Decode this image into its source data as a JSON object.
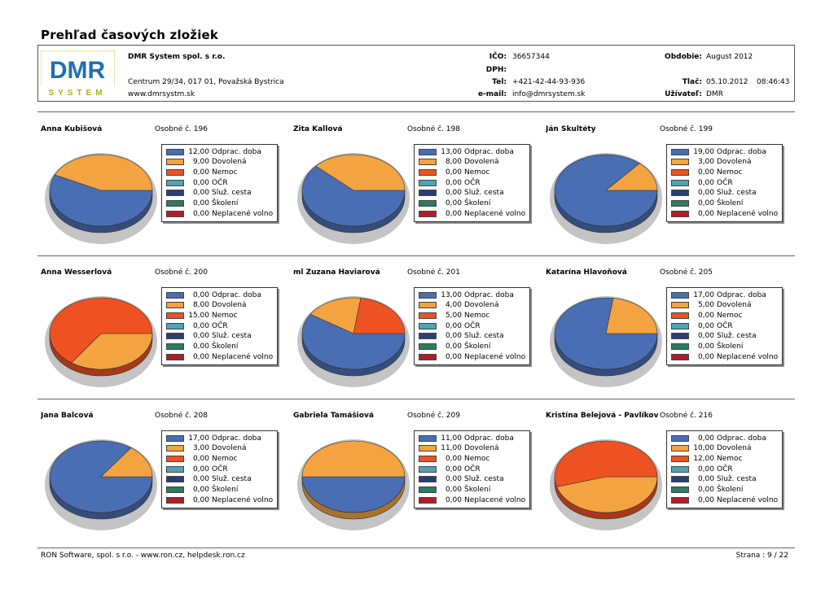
{
  "report": {
    "title": "Prehľad časových zložiek"
  },
  "company": {
    "name": "DMR System spol. s r.o.",
    "address": "Centrum 29/34, 017 01, Považská Bystrica",
    "web": "www.dmrsystm.sk",
    "logo_text_top": "DMR",
    "logo_text_bottom": "SYSTEM"
  },
  "ids": {
    "ico_label": "IČO:",
    "ico_value": "36657344",
    "dph_label": "DPH:",
    "tel_label": "Tel:",
    "tel_value": "+421-42-44-93-936",
    "email_label": "e-mail:",
    "email_value": "info@dmrsystem.sk"
  },
  "meta": {
    "period_label": "Obdobie:",
    "period_value": "August 2012",
    "print_label": "Tlač:",
    "print_date": "05.10.2012",
    "print_time": "08:46:43",
    "user_label": "Užívateľ:",
    "user_value": "DMR"
  },
  "colors": {
    "odprac": "#4a6eb3",
    "dovolena": "#f3a33f",
    "nemoc": "#ee5223",
    "ocr": "#4ea3b6",
    "sluz": "#2c3d74",
    "skoleni": "#2b7c61",
    "neplacene": "#b31d24"
  },
  "categories": [
    "Odprac. doba",
    "Dovolená",
    "Nemoc",
    "OČR",
    "Služ. cesta",
    "Školení",
    "Neplacené volno"
  ],
  "employees": [
    {
      "name": "Anna Kubišová",
      "number": "Osobné č. 196",
      "values": [
        "12,00",
        "9,00",
        "0,00",
        "0,00",
        "0,00",
        "0,00",
        "0,00"
      ]
    },
    {
      "name": "Zita Kallová",
      "number": "Osobné č. 198",
      "values": [
        "13,00",
        "8,00",
        "0,00",
        "0,00",
        "0,00",
        "0,00",
        "0,00"
      ]
    },
    {
      "name": "Ján Škultéty",
      "number": "Osobné č. 199",
      "values": [
        "19,00",
        "3,00",
        "0,00",
        "0,00",
        "0,00",
        "0,00",
        "0,00"
      ]
    },
    {
      "name": "Anna Wesserlová",
      "number": "Osobné č. 200",
      "values": [
        "0,00",
        "8,00",
        "15,00",
        "0,00",
        "0,00",
        "0,00",
        "0,00"
      ]
    },
    {
      "name": "ml Zuzana Haviarová",
      "number": "Osobné č. 201",
      "values": [
        "13,00",
        "4,00",
        "5,00",
        "0,00",
        "0,00",
        "0,00",
        "0,00"
      ]
    },
    {
      "name": "Katarína Hlavoňová",
      "number": "Osobné č. 205",
      "values": [
        "17,00",
        "5,00",
        "0,00",
        "0,00",
        "0,00",
        "0,00",
        "0,00"
      ]
    },
    {
      "name": "Jana Balcová",
      "number": "Osobné č. 208",
      "values": [
        "17,00",
        "3,00",
        "0,00",
        "0,00",
        "0,00",
        "0,00",
        "0,00"
      ]
    },
    {
      "name": "Gabriela Tamášiová",
      "number": "Osobné č. 209",
      "values": [
        "11,00",
        "11,00",
        "0,00",
        "0,00",
        "0,00",
        "0,00",
        "0,00"
      ]
    },
    {
      "name": "Kristína Belejová - Pavlíková",
      "number": "Osobné č. 216",
      "values": [
        "0,00",
        "10,00",
        "12,00",
        "0,00",
        "0,00",
        "0,00",
        "0,00"
      ]
    }
  ],
  "footer": {
    "left": "RON Software, spol. s r.o. - www.ron.cz, helpdesk.ron.cz",
    "right": "Strana : 9 / 22"
  }
}
